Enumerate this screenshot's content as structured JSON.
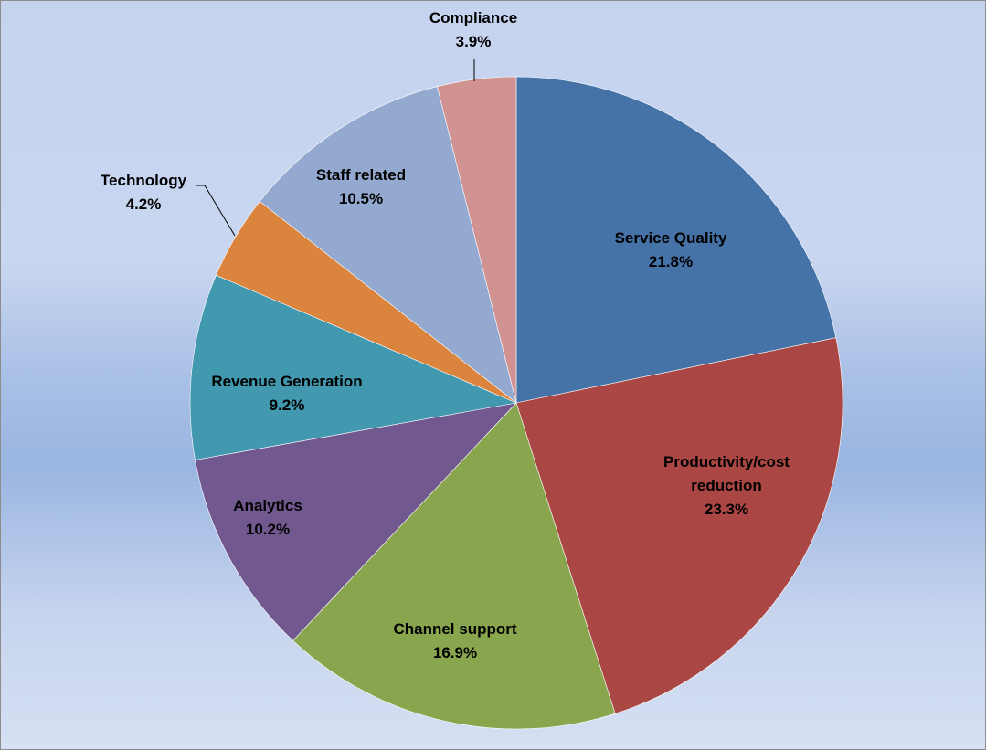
{
  "chart_data": {
    "type": "pie",
    "slices": [
      {
        "label": "Service Quality",
        "label_lines": [
          "Service Quality"
        ],
        "value": 21.8,
        "value_text": "21.8%",
        "color": "#4572A7"
      },
      {
        "label": "Productivity/cost reduction",
        "label_lines": [
          "Productivity/cost",
          "reduction"
        ],
        "value": 23.3,
        "value_text": "23.3%",
        "color": "#AA4643"
      },
      {
        "label": "Channel support",
        "label_lines": [
          "Channel support"
        ],
        "value": 16.9,
        "value_text": "16.9%",
        "color": "#89A54E"
      },
      {
        "label": "Analytics",
        "label_lines": [
          "Analytics"
        ],
        "value": 10.2,
        "value_text": "10.2%",
        "color": "#71588F"
      },
      {
        "label": "Revenue Generation",
        "label_lines": [
          "Revenue Generation"
        ],
        "value": 9.2,
        "value_text": "9.2%",
        "color": "#4198AF"
      },
      {
        "label": "Technology",
        "label_lines": [
          "Technology"
        ],
        "value": 4.2,
        "value_text": "4.2%",
        "color": "#DB843D"
      },
      {
        "label": "Staff related",
        "label_lines": [
          "Staff related"
        ],
        "value": 10.5,
        "value_text": "10.5%",
        "color": "#93A9CF"
      },
      {
        "label": "Compliance",
        "label_lines": [
          "Compliance"
        ],
        "value": 3.9,
        "value_text": "3.9%",
        "color": "#D19392"
      }
    ]
  }
}
